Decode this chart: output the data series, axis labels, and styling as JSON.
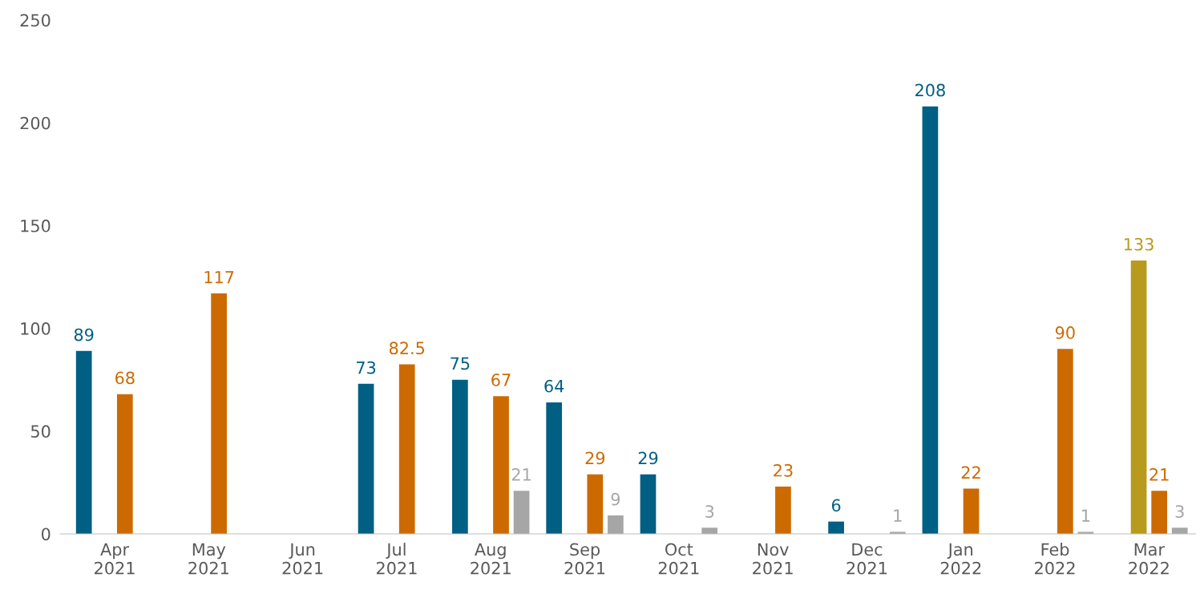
{
  "chart_data": {
    "type": "bar",
    "categories": [
      "Apr\n2021",
      "May\n2021",
      "Jun\n2021",
      "Jul\n2021",
      "Aug\n2021",
      "Sep\n2021",
      "Oct\n2021",
      "Nov\n2021",
      "Dec\n2021",
      "Jan\n2022",
      "Feb\n2022",
      "Mar\n2022"
    ],
    "series": [
      {
        "color": "#005f83",
        "values": [
          89,
          null,
          null,
          73,
          75,
          64,
          29,
          null,
          6,
          208,
          null,
          null
        ]
      },
      {
        "color": "#b89b1c",
        "values": [
          null,
          null,
          null,
          null,
          null,
          null,
          null,
          null,
          null,
          null,
          null,
          133
        ]
      },
      {
        "color": "#cc6a00",
        "values": [
          68,
          117,
          null,
          82.5,
          67,
          29,
          null,
          23,
          null,
          22,
          90,
          21
        ]
      },
      {
        "color": "#a6a6a6",
        "values": [
          null,
          null,
          null,
          null,
          21,
          9,
          3,
          null,
          1,
          null,
          1,
          3
        ]
      }
    ],
    "ylim": [
      0,
      250
    ],
    "yticks": [
      0,
      50,
      100,
      150,
      200,
      250
    ],
    "grid": false,
    "data_labels": true
  }
}
